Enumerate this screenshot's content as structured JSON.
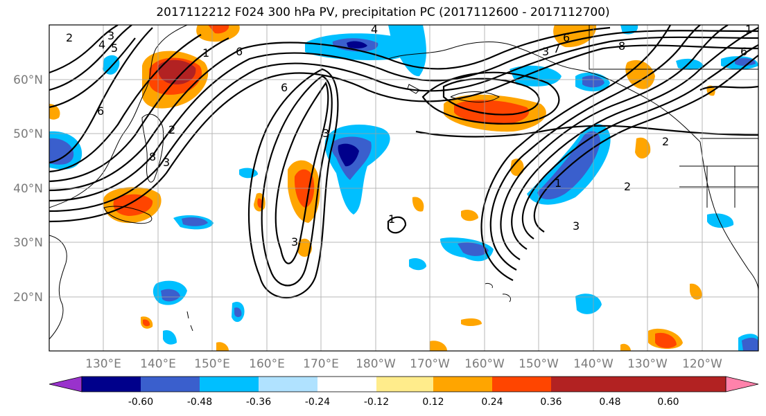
{
  "title": "2017112212 F024 300 hPa PV, precipitation PC (2017112600 - 2017112700)",
  "lat_labels": [
    "60°N",
    "50°N",
    "40°N",
    "30°N",
    "20°N"
  ],
  "lon_labels": [
    "130°E",
    "140°E",
    "150°E",
    "160°E",
    "170°E",
    "180°W",
    "170°W",
    "160°W",
    "150°W",
    "140°W",
    "130°W",
    "120°W"
  ],
  "colorbar": {
    "colors": [
      "#9932cc",
      "#00008b",
      "#3a5fcd",
      "#00bfff",
      "#b0e2ff",
      "#ffffff",
      "#ffec8b",
      "#ffa500",
      "#ff4500",
      "#b22222",
      "#ff82ab"
    ],
    "tick_labels": [
      "-0.60",
      "-0.48",
      "-0.36",
      "-0.24",
      "-0.12",
      "0.12",
      "0.24",
      "0.36",
      "0.48",
      "0.60"
    ]
  },
  "contour_labels": [
    "2",
    "3",
    "4",
    "5",
    "6",
    "1",
    "6",
    "8",
    "2",
    "3",
    "6",
    "3",
    "4",
    "6",
    "8",
    "3",
    "7",
    "1",
    "2",
    "3",
    "1",
    "3",
    "6",
    "1",
    "2"
  ]
}
